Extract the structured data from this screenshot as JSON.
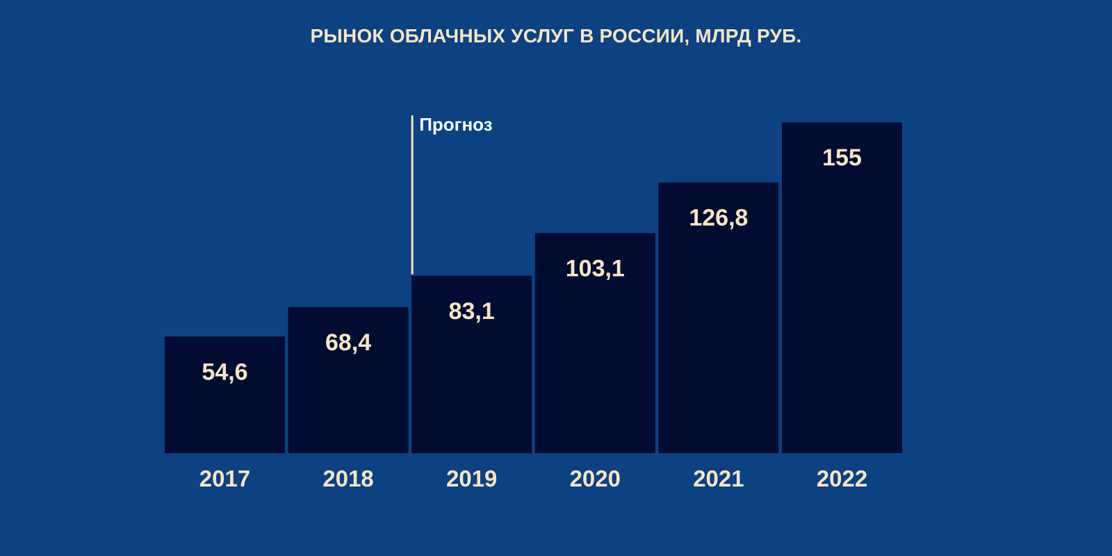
{
  "colors": {
    "background": "#0c4182",
    "bar": "#020c30",
    "text": "#f5e6c4",
    "forecast_text": "#ffffff"
  },
  "chart_data": {
    "type": "bar",
    "title": "РЫНОК ОБЛАЧНЫХ УСЛУГ В РОССИИ, МЛРД РУБ.",
    "categories": [
      "2017",
      "2018",
      "2019",
      "2020",
      "2021",
      "2022"
    ],
    "values": [
      54.6,
      68.4,
      83.1,
      103.1,
      126.8,
      155
    ],
    "value_labels": [
      "54,6",
      "68,4",
      "83,1",
      "103,1",
      "126,8",
      "155"
    ],
    "xlabel": "",
    "ylabel": "",
    "ylim": [
      0,
      155
    ],
    "grid": false,
    "annotations": [
      {
        "text": "Прогноз",
        "before_category": "2019"
      }
    ]
  }
}
